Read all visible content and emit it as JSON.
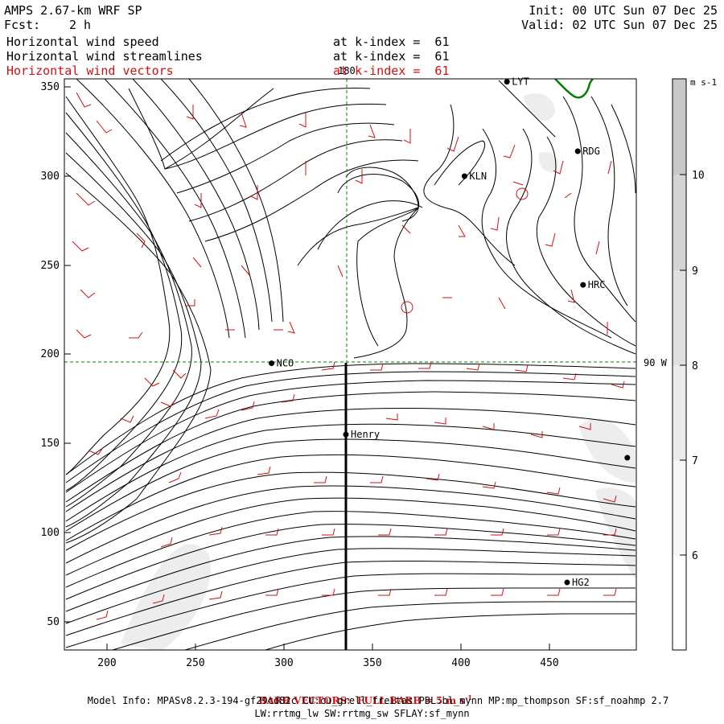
{
  "header": {
    "model": "AMPS 2.67-km WRF SP",
    "fcst_label": "Fcst:",
    "fcst_value": "2 h",
    "init": "Init: 00 UTC Sun 07 Dec 25",
    "valid": "Valid: 02 UTC Sun 07 Dec 25"
  },
  "fields": [
    {
      "name": "Horizontal wind speed",
      "level": "at k-index =  61",
      "color": "#000000"
    },
    {
      "name": "Horizontal wind streamlines",
      "level": "at k-index =  61",
      "color": "#000000"
    },
    {
      "name": "Horizontal wind vectors",
      "level": "at k-index =  61",
      "color": "#d01010"
    }
  ],
  "map": {
    "x_axis": {
      "ticks": [
        "200",
        "250",
        "300",
        "350",
        "400",
        "450"
      ],
      "range": [
        175,
        496
      ]
    },
    "y_axis": {
      "ticks": [
        "350",
        "300",
        "250",
        "200",
        "150",
        "100",
        "50"
      ],
      "range": [
        33,
        356
      ]
    },
    "grid_labels": {
      "meridian": "180",
      "parallel": "90 W"
    },
    "stations": [
      {
        "id": "LYT",
        "x": 426,
        "y": 353
      },
      {
        "id": "RDG",
        "x": 466,
        "y": 314
      },
      {
        "id": "KLN",
        "x": 402,
        "y": 300
      },
      {
        "id": "HRC",
        "x": 469,
        "y": 239
      },
      {
        "id": "NCO",
        "x": 293,
        "y": 195
      },
      {
        "id": "Henry",
        "x": 335,
        "y": 155
      },
      {
        "id": "",
        "x": 494,
        "y": 142
      },
      {
        "id": "HG2",
        "x": 460,
        "y": 72
      }
    ],
    "cross_section_x": 334
  },
  "colorbar": {
    "units": "m s-1",
    "labels": [
      "10",
      "9",
      "8",
      "7",
      "6"
    ],
    "colors": [
      "#ffffff",
      "#f6f6f6",
      "#ebebeb",
      "#e0e0e0",
      "#d4d4d4",
      "#c8c8c8"
    ]
  },
  "footer": {
    "barb_note": "BARB VECTORS:  FULL BARB = 5 m s",
    "barb_note_sup": "-1",
    "model_info": "Model Info: MPASv8.2.3-194-gf29cd82c CU:cu_grell_freitas PBL:bl_mynn MP:mp_thompson SF:sf_noahmp 2.7",
    "radiation": "LW:rrtmg_lw SW:rrtmg_sw SFLAY:sf_mynn"
  }
}
